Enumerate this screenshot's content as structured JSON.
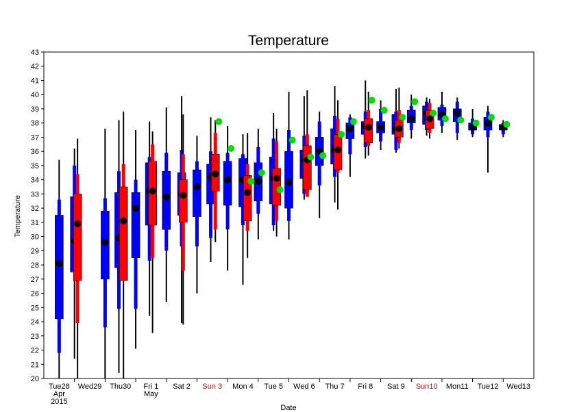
{
  "chart_data": {
    "type": "box",
    "title": "Temperature",
    "ylabel": "Temperature",
    "xlabel": "Date",
    "ylim": [
      20,
      43
    ],
    "yticks": [
      20,
      21,
      22,
      23,
      24,
      25,
      26,
      27,
      28,
      29,
      30,
      31,
      32,
      33,
      34,
      35,
      36,
      37,
      38,
      39,
      40,
      41,
      42,
      43
    ],
    "grid": false,
    "colors": {
      "weekday_box": "#0000ff",
      "weekend_box": "#ff0000",
      "median": "#000000",
      "marker": "#00dd00",
      "whisker": "#000000",
      "weekend_label": "#ff0000"
    },
    "days": [
      {
        "label": [
          "Tue28",
          "Apr",
          "2015"
        ],
        "weekend": false
      },
      {
        "label": [
          "Wed29"
        ],
        "weekend": false
      },
      {
        "label": [
          "Thu30"
        ],
        "weekend": false
      },
      {
        "label": [
          "Fri 1",
          "May"
        ],
        "weekend": false
      },
      {
        "label": [
          "Sat 2"
        ],
        "weekend": false
      },
      {
        "label": [
          "Sun 3"
        ],
        "weekend": true
      },
      {
        "label": [
          "Mon 4"
        ],
        "weekend": false
      },
      {
        "label": [
          "Tue 5"
        ],
        "weekend": false
      },
      {
        "label": [
          "Wed 6"
        ],
        "weekend": false
      },
      {
        "label": [
          "Thu 7"
        ],
        "weekend": false
      },
      {
        "label": [
          "Fri 8"
        ],
        "weekend": false
      },
      {
        "label": [
          "Sat 9"
        ],
        "weekend": false
      },
      {
        "label": [
          "Sun10"
        ],
        "weekend": true
      },
      {
        "label": [
          "Mon11"
        ],
        "weekend": false
      },
      {
        "label": [
          "Tue12"
        ],
        "weekend": false
      },
      {
        "label": [
          "Wed13"
        ],
        "weekend": false
      }
    ],
    "series": [
      {
        "day": 1,
        "offset": -0.5,
        "color": "blue",
        "whisker": [
          20.0,
          35.4
        ],
        "outer": [
          21.8,
          32.6
        ],
        "box": [
          24.2,
          31.5
        ],
        "median": 28.1,
        "marker": null
      },
      {
        "day": 1,
        "offset": 0.0,
        "color": "blue",
        "whisker": [
          21.4,
          36.2
        ],
        "outer": [
          27.5,
          35.0
        ],
        "box": [
          27.5,
          32.8
        ],
        "median": 29.7,
        "marker": null
      },
      {
        "day": 1,
        "offset": 0.1,
        "color": "red",
        "whisker": [
          20.0,
          36.9
        ],
        "outer": [
          23.9,
          34.4
        ],
        "box": [
          26.9,
          33.0
        ],
        "median": 30.9,
        "marker": null
      },
      {
        "day": 2,
        "offset": 0.0,
        "color": "blue",
        "whisker": [
          20.0,
          37.6
        ],
        "outer": [
          23.6,
          32.7
        ],
        "box": [
          27.0,
          31.8
        ],
        "median": 29.6,
        "marker": null
      },
      {
        "day": 2,
        "offset": 0.45,
        "color": "blue",
        "whisker": [
          20.4,
          38.2
        ],
        "outer": [
          24.9,
          34.6
        ],
        "box": [
          27.8,
          33.1
        ],
        "median": 29.9,
        "marker": null
      },
      {
        "day": 2,
        "offset": 0.6,
        "color": "red",
        "whisker": [
          20.0,
          38.8
        ],
        "outer": [
          26.9,
          35.1
        ],
        "box": [
          26.9,
          33.5
        ],
        "median": 31.1,
        "marker": null
      },
      {
        "day": 3,
        "offset": 0.0,
        "color": "blue",
        "whisker": [
          22.1,
          37.5
        ],
        "outer": [
          24.9,
          34.0
        ],
        "box": [
          28.5,
          33.1
        ],
        "median": 32.0,
        "marker": null
      },
      {
        "day": 3,
        "offset": 0.45,
        "color": "blue",
        "whisker": [
          24.4,
          38.1
        ],
        "outer": [
          28.3,
          35.6
        ],
        "box": [
          30.8,
          35.2
        ],
        "median": 33.2,
        "marker": null
      },
      {
        "day": 3,
        "offset": 0.55,
        "color": "red",
        "whisker": [
          23.2,
          37.4
        ],
        "outer": [
          28.5,
          36.5
        ],
        "box": [
          30.8,
          35.3
        ],
        "median": 33.2,
        "marker": null
      },
      {
        "day": 4,
        "offset": 0.0,
        "color": "blue",
        "whisker": [
          25.4,
          39.1
        ],
        "outer": [
          29.0,
          35.9
        ],
        "box": [
          30.5,
          34.6
        ],
        "median": 32.8,
        "marker": null
      },
      {
        "day": 4,
        "offset": 0.5,
        "color": "blue",
        "whisker": [
          23.9,
          39.9
        ],
        "outer": [
          29.3,
          36.1
        ],
        "box": [
          31.5,
          34.5
        ],
        "median": 33.0,
        "marker": null
      },
      {
        "day": 4,
        "offset": 0.55,
        "color": "red",
        "whisker": [
          23.8,
          38.6
        ],
        "outer": [
          27.6,
          35.8
        ],
        "box": [
          31.0,
          34.0
        ],
        "median": 32.9,
        "marker": null
      },
      {
        "day": 5,
        "offset": 0.0,
        "color": "blue",
        "whisker": [
          26.0,
          37.1
        ],
        "outer": [
          29.3,
          35.3
        ],
        "box": [
          31.4,
          34.7
        ],
        "median": 33.5,
        "marker": null
      },
      {
        "day": 5,
        "offset": 0.45,
        "color": "blue",
        "whisker": [
          28.2,
          38.4
        ],
        "outer": [
          29.9,
          36.0
        ],
        "box": [
          32.3,
          35.1
        ],
        "median": 34.2,
        "marker": null
      },
      {
        "day": 5,
        "offset": 0.6,
        "color": "red",
        "whisker": [
          29.6,
          38.2
        ],
        "outer": [
          30.5,
          37.3
        ],
        "box": [
          33.2,
          35.8
        ],
        "median": 34.4,
        "marker": 38.1
      },
      {
        "day": 6,
        "offset": 0.0,
        "color": "blue",
        "whisker": [
          27.6,
          37.8
        ],
        "outer": [
          30.5,
          35.9
        ],
        "box": [
          32.2,
          35.3
        ],
        "median": 34.0,
        "marker": 36.2
      },
      {
        "day": 6,
        "offset": 0.5,
        "color": "blue",
        "whisker": [
          26.6,
          37.2
        ],
        "outer": [
          30.8,
          35.8
        ],
        "box": [
          32.1,
          35.5
        ],
        "median": 34.0,
        "marker": null
      },
      {
        "day": 6,
        "offset": 0.65,
        "color": "red",
        "whisker": [
          28.5,
          37.3
        ],
        "outer": [
          30.4,
          35.1
        ],
        "box": [
          31.1,
          34.3
        ],
        "median": 33.1,
        "marker": 33.9
      },
      {
        "day": 7,
        "offset": 0.0,
        "color": "blue",
        "whisker": [
          29.8,
          37.6
        ],
        "outer": [
          31.6,
          36.3
        ],
        "box": [
          32.5,
          35.2
        ],
        "median": 33.9,
        "marker": 34.5
      },
      {
        "day": 7,
        "offset": 0.5,
        "color": "blue",
        "whisker": [
          30.4,
          38.7
        ],
        "outer": [
          30.8,
          36.9
        ],
        "box": [
          32.3,
          35.6
        ],
        "median": 34.1,
        "marker": null
      },
      {
        "day": 7,
        "offset": 0.6,
        "color": "red",
        "whisker": [
          30.0,
          37.6
        ],
        "outer": [
          31.1,
          36.7
        ],
        "box": [
          32.2,
          34.8
        ],
        "median": 34.1,
        "marker": 33.3
      },
      {
        "day": 8,
        "offset": 0.0,
        "color": "blue",
        "whisker": [
          29.8,
          40.2
        ],
        "outer": [
          31.1,
          37.5
        ],
        "box": [
          32.0,
          36.0
        ],
        "median": 33.8,
        "marker": 36.8
      },
      {
        "day": 8,
        "offset": 0.5,
        "color": "blue",
        "whisker": [
          32.6,
          39.9
        ],
        "outer": [
          33.0,
          37.1
        ],
        "box": [
          34.1,
          36.1
        ],
        "median": 35.4,
        "marker": null
      },
      {
        "day": 8,
        "offset": 0.6,
        "color": "red",
        "whisker": [
          32.9,
          40.3
        ],
        "outer": [
          32.8,
          37.2
        ],
        "box": [
          33.3,
          36.4
        ],
        "median": 35.4,
        "marker": 35.6
      },
      {
        "day": 9,
        "offset": 0.0,
        "color": "blue",
        "whisker": [
          31.3,
          38.8
        ],
        "outer": [
          33.6,
          38.1
        ],
        "box": [
          35.0,
          37.0
        ],
        "median": 36.0,
        "marker": 35.7
      },
      {
        "day": 9,
        "offset": 0.5,
        "color": "blue",
        "whisker": [
          32.4,
          40.6
        ],
        "outer": [
          34.2,
          38.5
        ],
        "box": [
          35.1,
          37.6
        ],
        "median": 36.1,
        "marker": null
      },
      {
        "day": 9,
        "offset": 0.6,
        "color": "red",
        "whisker": [
          31.9,
          39.6
        ],
        "outer": [
          34.5,
          38.3
        ],
        "box": [
          34.7,
          37.2
        ],
        "median": 36.1,
        "marker": 37.2
      },
      {
        "day": 10,
        "offset": 0.0,
        "color": "blue",
        "whisker": [
          34.2,
          38.6
        ],
        "outer": [
          35.8,
          38.4
        ],
        "box": [
          36.9,
          38.0
        ],
        "median": 37.6,
        "marker": 38.1
      },
      {
        "day": 10,
        "offset": 0.5,
        "color": "blue",
        "whisker": [
          35.5,
          41.0
        ],
        "outer": [
          36.3,
          38.8
        ],
        "box": [
          37.2,
          38.1
        ],
        "median": 37.8,
        "marker": null
      },
      {
        "day": 10,
        "offset": 0.6,
        "color": "red",
        "whisker": [
          35.7,
          40.2
        ],
        "outer": [
          36.4,
          38.9
        ],
        "box": [
          36.6,
          38.3
        ],
        "median": 37.7,
        "marker": 39.6
      },
      {
        "day": 11,
        "offset": 0.0,
        "color": "blue",
        "whisker": [
          36.1,
          39.6
        ],
        "outer": [
          36.7,
          39.0
        ],
        "box": [
          37.3,
          38.1
        ],
        "median": 37.7,
        "marker": 38.9
      },
      {
        "day": 11,
        "offset": 0.5,
        "color": "blue",
        "whisker": [
          35.9,
          40.4
        ],
        "outer": [
          36.1,
          38.8
        ],
        "box": [
          37.2,
          38.6
        ],
        "median": 37.6,
        "marker": null
      },
      {
        "day": 11,
        "offset": 0.6,
        "color": "red",
        "whisker": [
          36.2,
          40.5
        ],
        "outer": [
          36.6,
          38.9
        ],
        "box": [
          37.0,
          38.2
        ],
        "median": 37.6,
        "marker": 38.4
      },
      {
        "day": 12,
        "offset": 0.0,
        "color": "blue",
        "whisker": [
          36.9,
          40.0
        ],
        "outer": [
          37.5,
          39.2
        ],
        "box": [
          38.0,
          38.9
        ],
        "median": 38.3,
        "marker": 39.5
      },
      {
        "day": 12,
        "offset": 0.5,
        "color": "blue",
        "whisker": [
          37.1,
          39.8
        ],
        "outer": [
          37.5,
          39.5
        ],
        "box": [
          37.9,
          39.2
        ],
        "median": 38.7,
        "marker": null
      },
      {
        "day": 12,
        "offset": 0.6,
        "color": "red",
        "whisker": [
          36.9,
          39.7
        ],
        "outer": [
          37.3,
          39.4
        ],
        "box": [
          37.6,
          38.9
        ],
        "median": 38.3,
        "marker": 38.7
      },
      {
        "day": 13,
        "offset": 0.0,
        "color": "blue",
        "whisker": [
          37.3,
          40.2
        ],
        "outer": [
          37.8,
          39.3
        ],
        "box": [
          38.2,
          39.1
        ],
        "median": 38.6,
        "marker": 38.3
      },
      {
        "day": 13,
        "offset": 0.5,
        "color": "blue",
        "whisker": [
          36.8,
          39.8
        ],
        "outer": [
          37.3,
          39.5
        ],
        "box": [
          38.1,
          39.0
        ],
        "median": 38.7,
        "marker": 38.2
      },
      {
        "day": 14,
        "offset": 0.0,
        "color": "blue",
        "whisker": [
          37.0,
          39.0
        ],
        "outer": [
          37.2,
          38.3
        ],
        "box": [
          37.5,
          38.0
        ],
        "median": 37.7,
        "marker": 38.0
      },
      {
        "day": 14,
        "offset": 0.5,
        "color": "blue",
        "whisker": [
          34.5,
          39.2
        ],
        "outer": [
          37.0,
          38.8
        ],
        "box": [
          37.5,
          38.4
        ],
        "median": 38.0,
        "marker": 38.4
      },
      {
        "day": 15,
        "offset": 0.0,
        "color": "blue",
        "whisker": [
          37.0,
          38.2
        ],
        "outer": [
          37.2,
          38.0
        ],
        "box": [
          37.5,
          37.9
        ],
        "median": 37.7,
        "marker": 37.9
      }
    ]
  }
}
